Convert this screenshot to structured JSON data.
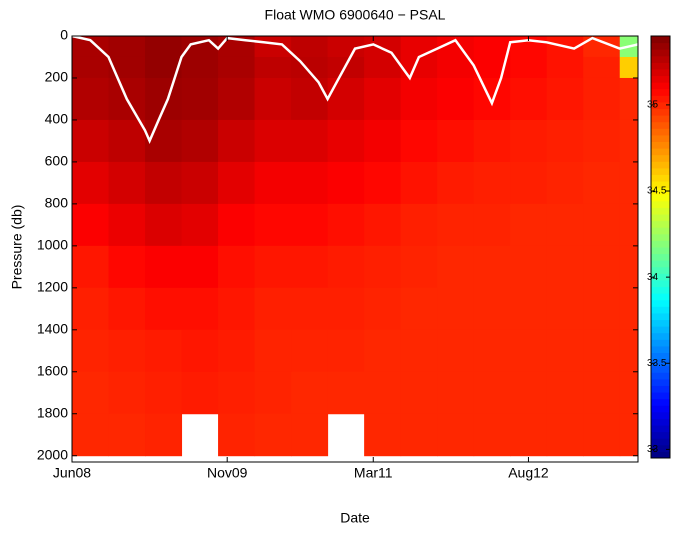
{
  "chart_data": {
    "type": "heatmap",
    "title": "Float WMO 6900640 − PSAL",
    "x_label": "Date",
    "y_label": "Pressure (db)",
    "x_edges": [
      0,
      4,
      8,
      12,
      16,
      20,
      24,
      28,
      32,
      36,
      40,
      44,
      48,
      52,
      56,
      60,
      62
    ],
    "y_edges": [
      0,
      100,
      200,
      400,
      600,
      800,
      1000,
      1200,
      1400,
      1600,
      1800,
      2000
    ],
    "z": [
      [
        35.3,
        35.32,
        35.35,
        35.33,
        35.3,
        35.22,
        35.25,
        35.22,
        35.2,
        35.15,
        35.12,
        35.1,
        35.08,
        35.05,
        35.0,
        34.2
      ],
      [
        35.3,
        35.32,
        35.35,
        35.33,
        35.3,
        35.25,
        35.26,
        35.24,
        35.2,
        35.15,
        35.12,
        35.1,
        35.08,
        35.05,
        35.02,
        34.6
      ],
      [
        35.28,
        35.3,
        35.33,
        35.32,
        35.28,
        35.22,
        35.24,
        35.2,
        35.16,
        35.12,
        35.1,
        35.08,
        35.06,
        35.04,
        35.02,
        35.0
      ],
      [
        35.22,
        35.25,
        35.3,
        35.28,
        35.22,
        35.18,
        35.18,
        35.15,
        35.12,
        35.08,
        35.06,
        35.04,
        35.03,
        35.02,
        35.01,
        35.0
      ],
      [
        35.16,
        35.2,
        35.24,
        35.22,
        35.16,
        35.12,
        35.12,
        35.1,
        35.08,
        35.05,
        35.03,
        35.02,
        35.02,
        35.01,
        35.0,
        35.0
      ],
      [
        35.1,
        35.14,
        35.18,
        35.16,
        35.1,
        35.08,
        35.08,
        35.06,
        35.04,
        35.02,
        35.01,
        35.01,
        35.0,
        35.0,
        35.0,
        35.0
      ],
      [
        35.04,
        35.08,
        35.1,
        35.1,
        35.06,
        35.04,
        35.04,
        35.03,
        35.02,
        35.01,
        35.0,
        35.0,
        35.0,
        35.0,
        35.0,
        35.0
      ],
      [
        35.02,
        35.04,
        35.06,
        35.06,
        35.04,
        35.02,
        35.02,
        35.02,
        35.01,
        35.0,
        35.0,
        35.0,
        35.0,
        35.0,
        35.0,
        35.0
      ],
      [
        35.01,
        35.02,
        35.03,
        35.04,
        35.03,
        35.01,
        35.01,
        35.01,
        35.0,
        35.0,
        35.0,
        35.0,
        35.0,
        35.0,
        35.0,
        35.0
      ],
      [
        35.0,
        35.01,
        35.02,
        35.03,
        35.02,
        35.01,
        35.0,
        35.0,
        35.0,
        35.0,
        35.0,
        35.0,
        35.0,
        35.0,
        35.0,
        35.0
      ],
      [
        35.0,
        35.0,
        35.01,
        null,
        35.01,
        35.0,
        35.0,
        null,
        35.0,
        35.0,
        35.0,
        35.0,
        35.0,
        35.0,
        35.0,
        35.0
      ]
    ],
    "mld": {
      "color": "#ffffff",
      "x": [
        0,
        2,
        4,
        6,
        8,
        8.5,
        9.5,
        10.5,
        12,
        13,
        15,
        16,
        17,
        19,
        21,
        23,
        25,
        27,
        28,
        29,
        31,
        33,
        35,
        37,
        38,
        40,
        42,
        44,
        46,
        47,
        48,
        50,
        52,
        55,
        57,
        60,
        62
      ],
      "values": [
        0,
        20,
        100,
        300,
        450,
        500,
        400,
        300,
        100,
        40,
        20,
        60,
        10,
        20,
        30,
        40,
        120,
        220,
        300,
        220,
        60,
        40,
        80,
        200,
        100,
        60,
        20,
        140,
        320,
        200,
        30,
        20,
        30,
        60,
        10,
        60,
        40
      ]
    },
    "xlim": [
      0,
      62
    ],
    "xticks": [
      {
        "value": 0,
        "label": "Jun08"
      },
      {
        "value": 17,
        "label": "Nov09"
      },
      {
        "value": 33,
        "label": "Mar11"
      },
      {
        "value": 50,
        "label": "Aug12"
      }
    ],
    "ylim": [
      0,
      2030
    ],
    "y_inverted": true,
    "yticks": [
      0,
      200,
      400,
      600,
      800,
      1000,
      1200,
      1400,
      1600,
      1800,
      2000
    ],
    "colormap": "jet",
    "clim": [
      32.95,
      35.4
    ],
    "cticks": [
      33,
      33.5,
      34,
      34.5,
      35
    ]
  }
}
